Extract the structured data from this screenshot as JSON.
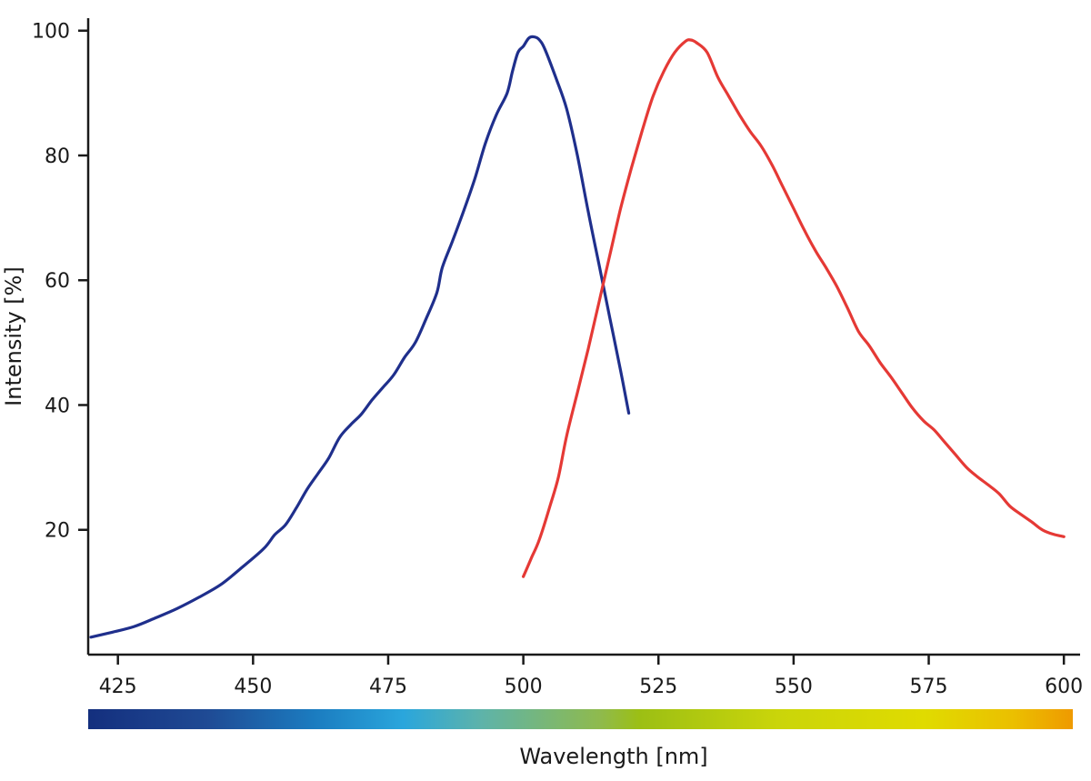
{
  "chart_data": {
    "type": "line",
    "xlabel": "Wavelength [nm]",
    "ylabel": "Intensity [%]",
    "xlim": [
      419.5,
      603
    ],
    "ylim": [
      0,
      102
    ],
    "x_ticks": [
      425,
      450,
      475,
      500,
      525,
      550,
      575,
      600
    ],
    "y_ticks": [
      20,
      40,
      60,
      80,
      100
    ],
    "grid": false,
    "legend": "none",
    "spectrum_bar": {
      "range": [
        419.5,
        602.5
      ],
      "stops": [
        {
          "at": 0.0,
          "color": "#142f7e"
        },
        {
          "at": 0.12,
          "color": "#1f4a94"
        },
        {
          "at": 0.23,
          "color": "#1b7cc0"
        },
        {
          "at": 0.32,
          "color": "#2aa6dc"
        },
        {
          "at": 0.4,
          "color": "#5eb3a9"
        },
        {
          "at": 0.52,
          "color": "#8fba4d"
        },
        {
          "at": 0.56,
          "color": "#9cbf14"
        },
        {
          "at": 0.7,
          "color": "#cad50a"
        },
        {
          "at": 0.85,
          "color": "#e0db00"
        },
        {
          "at": 0.94,
          "color": "#ebbf00"
        },
        {
          "at": 1.0,
          "color": "#ef9a00"
        }
      ]
    },
    "series": [
      {
        "color": "#1f2f8c",
        "points": [
          [
            420,
            2.8
          ],
          [
            424,
            3.6
          ],
          [
            428,
            4.5
          ],
          [
            432,
            5.9
          ],
          [
            436,
            7.4
          ],
          [
            440,
            9.2
          ],
          [
            444,
            11.2
          ],
          [
            448,
            14.0
          ],
          [
            452,
            17.0
          ],
          [
            454,
            19.2
          ],
          [
            456,
            20.8
          ],
          [
            458,
            23.5
          ],
          [
            460,
            26.5
          ],
          [
            462,
            29.0
          ],
          [
            464,
            31.5
          ],
          [
            466,
            34.8
          ],
          [
            468,
            36.8
          ],
          [
            470,
            38.5
          ],
          [
            472,
            40.8
          ],
          [
            474,
            42.8
          ],
          [
            476,
            44.8
          ],
          [
            478,
            47.6
          ],
          [
            480,
            50.0
          ],
          [
            482,
            53.8
          ],
          [
            484,
            58.0
          ],
          [
            485,
            62.0
          ],
          [
            487,
            66.5
          ],
          [
            489,
            71.2
          ],
          [
            491,
            76.2
          ],
          [
            493,
            82.0
          ],
          [
            495,
            86.5
          ],
          [
            497,
            90.0
          ],
          [
            498,
            93.5
          ],
          [
            499,
            96.5
          ],
          [
            500,
            97.5
          ],
          [
            501,
            98.8
          ],
          [
            502,
            99.0
          ],
          [
            503,
            98.5
          ],
          [
            504,
            97.0
          ],
          [
            506,
            92.5
          ],
          [
            508,
            87.5
          ],
          [
            510,
            80.0
          ],
          [
            512,
            71.0
          ],
          [
            514,
            62.5
          ],
          [
            516,
            54.0
          ],
          [
            518,
            45.5
          ],
          [
            519.5,
            38.7
          ]
        ]
      },
      {
        "color": "#e53935",
        "points": [
          [
            500,
            12.5
          ],
          [
            501.5,
            15.5
          ],
          [
            503,
            18.5
          ],
          [
            505,
            24.0
          ],
          [
            506.5,
            28.5
          ],
          [
            508,
            35.0
          ],
          [
            510,
            42.0
          ],
          [
            512,
            49.0
          ],
          [
            514,
            56.5
          ],
          [
            516,
            64.0
          ],
          [
            518,
            71.5
          ],
          [
            520,
            78.0
          ],
          [
            522,
            84.0
          ],
          [
            524,
            89.5
          ],
          [
            526,
            93.5
          ],
          [
            528,
            96.5
          ],
          [
            530,
            98.3
          ],
          [
            531,
            98.5
          ],
          [
            532,
            98.1
          ],
          [
            534,
            96.5
          ],
          [
            536,
            92.5
          ],
          [
            538,
            89.5
          ],
          [
            540,
            86.5
          ],
          [
            542,
            83.8
          ],
          [
            544,
            81.5
          ],
          [
            546,
            78.5
          ],
          [
            548,
            75.0
          ],
          [
            550,
            71.5
          ],
          [
            552,
            68.0
          ],
          [
            554,
            64.8
          ],
          [
            556,
            62.0
          ],
          [
            558,
            59.0
          ],
          [
            560,
            55.5
          ],
          [
            562,
            51.8
          ],
          [
            564,
            49.5
          ],
          [
            566,
            46.8
          ],
          [
            568,
            44.5
          ],
          [
            570,
            42.0
          ],
          [
            572,
            39.5
          ],
          [
            574,
            37.5
          ],
          [
            576,
            36.0
          ],
          [
            578,
            34.0
          ],
          [
            580,
            32.0
          ],
          [
            582,
            30.0
          ],
          [
            584,
            28.5
          ],
          [
            586,
            27.2
          ],
          [
            588,
            25.8
          ],
          [
            590,
            23.8
          ],
          [
            592,
            22.5
          ],
          [
            594,
            21.3
          ],
          [
            596,
            20.0
          ],
          [
            598,
            19.3
          ],
          [
            600,
            18.9
          ]
        ]
      }
    ]
  }
}
